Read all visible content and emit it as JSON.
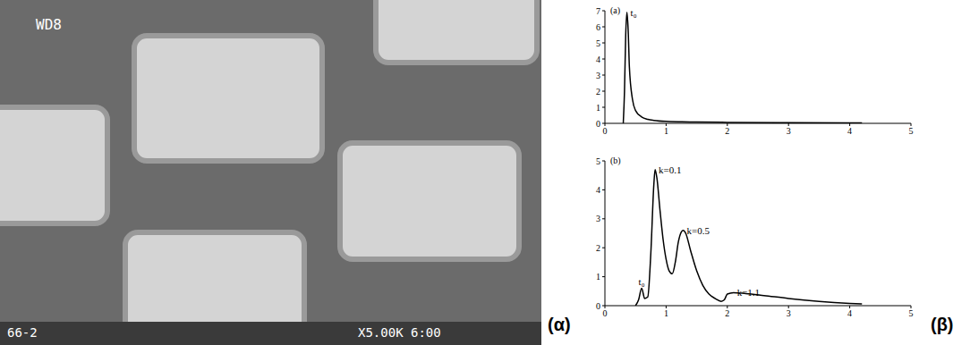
{
  "image": {
    "panel_label": "(α)",
    "texts": [
      "WD8",
      "66-2",
      "X5.00K 6:00"
    ]
  },
  "panel_label": "(β)",
  "chart_data": [
    {
      "type": "line",
      "title": "(a)",
      "x": [
        0.3,
        0.32,
        0.34,
        0.36,
        0.38,
        0.4,
        0.45,
        0.5,
        0.6,
        0.7,
        0.8,
        1.0,
        1.5,
        2,
        3,
        4,
        4.2
      ],
      "values": [
        0,
        2.0,
        5.5,
        6.9,
        5.8,
        3.5,
        1.5,
        0.8,
        0.4,
        0.25,
        0.18,
        0.12,
        0.08,
        0.06,
        0.04,
        0.03,
        0.03
      ],
      "color": "#000000",
      "xlim": [
        0,
        5
      ],
      "xticks": [
        0,
        1,
        2,
        3,
        4,
        5
      ],
      "ylim": [
        0,
        7
      ],
      "yticks": [
        0,
        1,
        2,
        3,
        4,
        5,
        6,
        7
      ],
      "annotations": [
        {
          "text": "t₀",
          "x": 0.36,
          "y": 6.9
        }
      ]
    },
    {
      "type": "line",
      "title": "(b)",
      "x": [
        0.5,
        0.55,
        0.6,
        0.65,
        0.7,
        0.75,
        0.8,
        0.82,
        0.85,
        0.9,
        0.95,
        1.0,
        1.05,
        1.1,
        1.15,
        1.2,
        1.25,
        1.28,
        1.32,
        1.4,
        1.5,
        1.6,
        1.7,
        1.8,
        1.9,
        1.95,
        2.0,
        2.1,
        2.3,
        2.6,
        3,
        3.5,
        4,
        4.2
      ],
      "values": [
        0,
        0.2,
        0.6,
        0.25,
        0.3,
        1.8,
        4.2,
        4.7,
        4.4,
        3.3,
        2.3,
        1.6,
        1.2,
        1.1,
        1.5,
        2.2,
        2.55,
        2.6,
        2.5,
        1.9,
        1.2,
        0.7,
        0.4,
        0.25,
        0.15,
        0.2,
        0.4,
        0.45,
        0.42,
        0.35,
        0.25,
        0.15,
        0.08,
        0.06
      ],
      "color": "#000000",
      "xlim": [
        0,
        5
      ],
      "xticks": [
        0,
        1,
        2,
        3,
        4,
        5
      ],
      "ylim": [
        0,
        5
      ],
      "yticks": [
        0,
        1,
        2,
        3,
        4,
        5
      ],
      "annotations": [
        {
          "text": "t₀",
          "x": 0.6,
          "y": 0.6
        },
        {
          "text": "k=0.1",
          "x": 0.82,
          "y": 4.7
        },
        {
          "text": "k=0.5",
          "x": 1.28,
          "y": 2.6
        },
        {
          "text": "k=1.1",
          "x": 2.1,
          "y": 0.45
        }
      ]
    }
  ]
}
